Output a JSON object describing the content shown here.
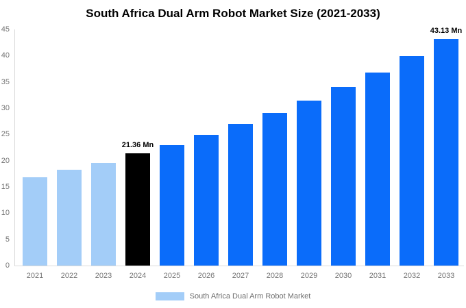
{
  "title": "South Africa Dual Arm Robot Market Size (2021-2033)",
  "legend": {
    "label": "South Africa Dual Arm Robot Market",
    "swatch_color": "#a3cdf8"
  },
  "colors": {
    "historical": "#a3cdf8",
    "base_year": "#000000",
    "forecast": "#0a6cfa",
    "axis_line": "#d9d9d9",
    "tick_text": "#757575",
    "legend_text": "#6e6e6e",
    "annotation_text": "#000000"
  },
  "chart_data": {
    "type": "bar",
    "title": "South Africa Dual Arm Robot Market Size (2021-2033)",
    "unit": "Mn",
    "categories": [
      "2021",
      "2022",
      "2023",
      "2024",
      "2025",
      "2026",
      "2027",
      "2028",
      "2029",
      "2030",
      "2031",
      "2032",
      "2033"
    ],
    "values": [
      16.8,
      18.2,
      19.6,
      21.36,
      23.0,
      24.9,
      26.95,
      29.1,
      31.5,
      34.1,
      36.8,
      39.9,
      43.13
    ],
    "bar_roles": [
      "historical",
      "historical",
      "historical",
      "base_year",
      "forecast",
      "forecast",
      "forecast",
      "forecast",
      "forecast",
      "forecast",
      "forecast",
      "forecast",
      "forecast"
    ],
    "annotations": [
      {
        "category": "2024",
        "text": "21.36 Mn"
      },
      {
        "category": "2033",
        "text": "43.13 Mn"
      }
    ],
    "xlabel": "",
    "ylabel": "",
    "ylim": [
      0,
      45
    ],
    "yticks": [
      0,
      5,
      10,
      15,
      20,
      25,
      30,
      35,
      40,
      45
    ],
    "grid": false,
    "legend": [
      "South Africa Dual Arm Robot Market"
    ],
    "legend_position": "bottom"
  }
}
